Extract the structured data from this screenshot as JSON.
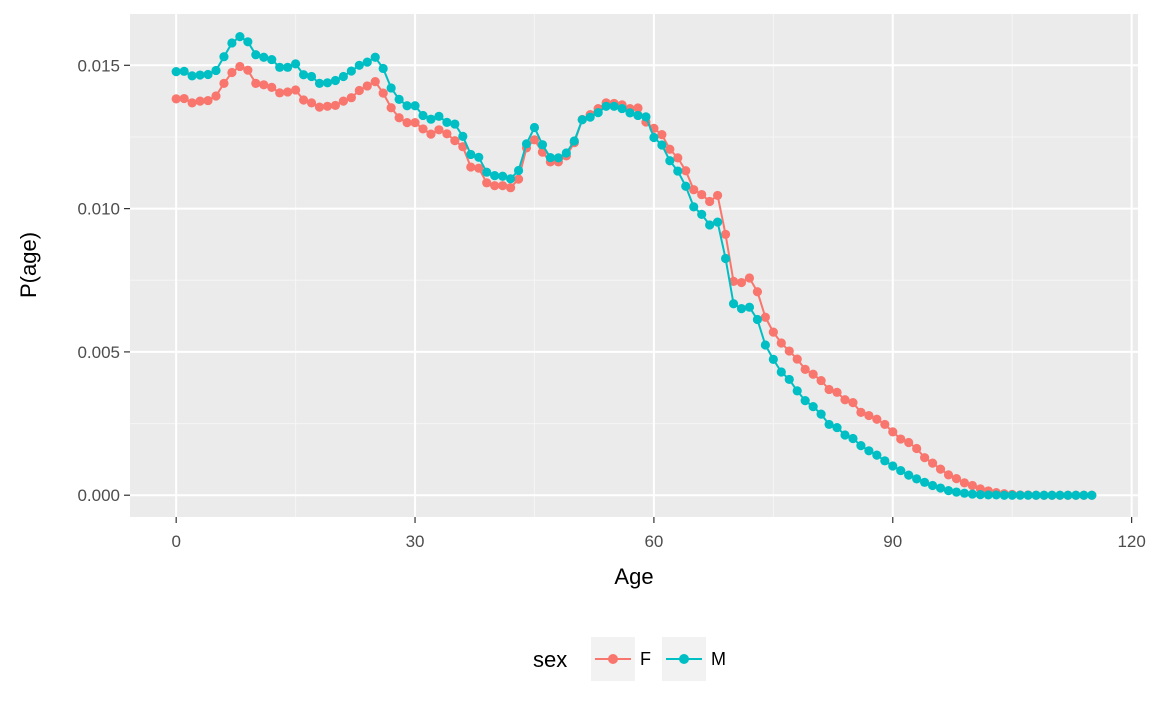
{
  "chart_data": {
    "type": "line",
    "title": "",
    "xlabel": "Age",
    "ylabel": "P(age)",
    "xlim": [
      -5.8,
      120.8
    ],
    "ylim": [
      -0.00076,
      0.01679
    ],
    "x_ticks": [
      0,
      30,
      60,
      90,
      120
    ],
    "x_tick_labels": [
      "0",
      "30",
      "60",
      "90",
      "120"
    ],
    "y_ticks": [
      0.0,
      0.005,
      0.01,
      0.015
    ],
    "y_tick_labels": [
      "0.000",
      "0.005",
      "0.010",
      "0.015"
    ],
    "grid": true,
    "legend": {
      "title": "sex",
      "position": "bottom"
    },
    "series": [
      {
        "name": "F",
        "color": "#F8766D",
        "x": [
          0,
          1,
          2,
          3,
          4,
          5,
          6,
          7,
          8,
          9,
          10,
          11,
          12,
          13,
          14,
          15,
          16,
          17,
          18,
          19,
          20,
          21,
          22,
          23,
          24,
          25,
          26,
          27,
          28,
          29,
          30,
          31,
          32,
          33,
          34,
          35,
          36,
          37,
          38,
          39,
          40,
          41,
          42,
          43,
          44,
          45,
          46,
          47,
          48,
          49,
          50,
          51,
          52,
          53,
          54,
          55,
          56,
          57,
          58,
          59,
          60,
          61,
          62,
          63,
          64,
          65,
          66,
          67,
          68,
          69,
          70,
          71,
          72,
          73,
          74,
          75,
          76,
          77,
          78,
          79,
          80,
          81,
          82,
          83,
          84,
          85,
          86,
          87,
          88,
          89,
          90,
          91,
          92,
          93,
          94,
          95,
          96,
          97,
          98,
          99,
          100,
          101,
          102,
          103,
          104,
          105,
          106,
          107,
          108,
          109,
          110,
          111,
          112,
          113,
          114,
          115
        ],
        "values": [
          0.01383,
          0.01384,
          0.01369,
          0.01375,
          0.01377,
          0.01393,
          0.01437,
          0.01475,
          0.01496,
          0.01483,
          0.01437,
          0.01432,
          0.01423,
          0.01404,
          0.01407,
          0.01414,
          0.01379,
          0.01369,
          0.01354,
          0.01357,
          0.0136,
          0.01375,
          0.01387,
          0.01412,
          0.01428,
          0.01443,
          0.01403,
          0.01352,
          0.01317,
          0.013,
          0.013,
          0.01278,
          0.0126,
          0.01275,
          0.01261,
          0.01237,
          0.01216,
          0.01145,
          0.01141,
          0.0109,
          0.0108,
          0.0108,
          0.01073,
          0.01103,
          0.01212,
          0.0124,
          0.01197,
          0.01163,
          0.01163,
          0.01184,
          0.0123,
          0.01311,
          0.01328,
          0.01349,
          0.01369,
          0.01367,
          0.01362,
          0.01349,
          0.01351,
          0.01302,
          0.0128,
          0.01258,
          0.01207,
          0.01177,
          0.01132,
          0.01066,
          0.01049,
          0.01025,
          0.01046,
          0.0091,
          0.00746,
          0.00742,
          0.00758,
          0.0071,
          0.00621,
          0.00569,
          0.00531,
          0.00503,
          0.00475,
          0.00439,
          0.00422,
          0.004,
          0.00369,
          0.00359,
          0.00333,
          0.00323,
          0.00289,
          0.00278,
          0.00265,
          0.00247,
          0.00221,
          0.00196,
          0.00184,
          0.00163,
          0.00131,
          0.00112,
          0.00091,
          0.00071,
          0.00058,
          0.00043,
          0.00034,
          0.00022,
          0.00015,
          9e-05,
          5e-05,
          3e-05,
          1e-05,
          1e-05,
          0.0,
          0.0,
          0.0,
          0.0,
          0.0,
          0.0,
          0.0,
          0.0
        ]
      },
      {
        "name": "M",
        "color": "#00BFC4",
        "x": [
          0,
          1,
          2,
          3,
          4,
          5,
          6,
          7,
          8,
          9,
          10,
          11,
          12,
          13,
          14,
          15,
          16,
          17,
          18,
          19,
          20,
          21,
          22,
          23,
          24,
          25,
          26,
          27,
          28,
          29,
          30,
          31,
          32,
          33,
          34,
          35,
          36,
          37,
          38,
          39,
          40,
          41,
          42,
          43,
          44,
          45,
          46,
          47,
          48,
          49,
          50,
          51,
          52,
          53,
          54,
          55,
          56,
          57,
          58,
          59,
          60,
          61,
          62,
          63,
          64,
          65,
          66,
          67,
          68,
          69,
          70,
          71,
          72,
          73,
          74,
          75,
          76,
          77,
          78,
          79,
          80,
          81,
          82,
          83,
          84,
          85,
          86,
          87,
          88,
          89,
          90,
          91,
          92,
          93,
          94,
          95,
          96,
          97,
          98,
          99,
          100,
          101,
          102,
          103,
          104,
          105,
          106,
          107,
          108,
          109,
          110,
          111,
          112,
          113,
          114,
          115
        ],
        "values": [
          0.01478,
          0.01479,
          0.01463,
          0.01466,
          0.01468,
          0.01482,
          0.0153,
          0.01578,
          0.016,
          0.01582,
          0.01537,
          0.01528,
          0.0152,
          0.01493,
          0.01493,
          0.01505,
          0.01467,
          0.01461,
          0.01437,
          0.01439,
          0.01447,
          0.01461,
          0.0148,
          0.015,
          0.01511,
          0.01528,
          0.01489,
          0.01421,
          0.01381,
          0.01359,
          0.01359,
          0.01325,
          0.01312,
          0.01322,
          0.01301,
          0.01295,
          0.01252,
          0.01189,
          0.01179,
          0.01127,
          0.01115,
          0.01113,
          0.01104,
          0.01133,
          0.01226,
          0.01283,
          0.01223,
          0.01178,
          0.01177,
          0.01194,
          0.01236,
          0.0131,
          0.01319,
          0.01335,
          0.01357,
          0.01357,
          0.01349,
          0.01334,
          0.01325,
          0.0132,
          0.01248,
          0.01222,
          0.01167,
          0.01131,
          0.01078,
          0.01006,
          0.0098,
          0.00943,
          0.00953,
          0.00826,
          0.00668,
          0.00651,
          0.00656,
          0.00613,
          0.00524,
          0.00474,
          0.0043,
          0.00404,
          0.00364,
          0.0033,
          0.00309,
          0.00283,
          0.00247,
          0.00236,
          0.0021,
          0.00198,
          0.00173,
          0.00155,
          0.0014,
          0.0012,
          0.00102,
          0.00086,
          0.0007,
          0.00057,
          0.00045,
          0.00034,
          0.00025,
          0.00016,
          0.00011,
          7e-05,
          4e-05,
          2e-05,
          1e-05,
          1e-05,
          0.0,
          0.0,
          0.0,
          0.0,
          0.0,
          0.0,
          0.0,
          0.0,
          0.0,
          0.0,
          0.0,
          0.0
        ]
      }
    ]
  }
}
